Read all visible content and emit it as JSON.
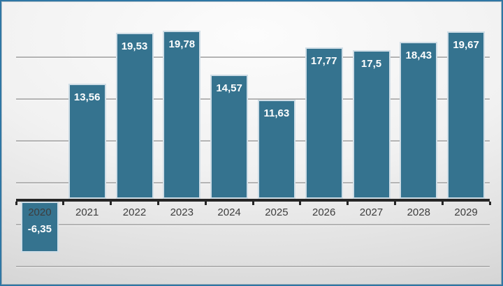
{
  "chart_data": {
    "type": "bar",
    "title": "",
    "xlabel": "",
    "ylabel": "",
    "categories": [
      "2020",
      "2021",
      "2022",
      "2023",
      "2024",
      "2025",
      "2026",
      "2027",
      "2028",
      "2029"
    ],
    "values": [
      -6.35,
      13.56,
      19.53,
      19.78,
      14.57,
      11.63,
      17.77,
      17.5,
      18.43,
      19.67
    ],
    "value_labels": [
      "-6,35",
      "13,56",
      "19,53",
      "19,78",
      "14,57",
      "11,63",
      "17,77",
      "17,5",
      "18,43",
      "19,67"
    ],
    "decimal_separator": ",",
    "grid": true,
    "legend": false,
    "ylim": [
      -10,
      22
    ],
    "colors": {
      "bar_fill": "#35738f",
      "bar_border": "#cfdde6",
      "value_label": "#ffffff",
      "category_label": "#3d3d3d",
      "axis_line": "#262626",
      "gridline": "#b3b3b3",
      "frame_border": "#2e76a4"
    }
  }
}
